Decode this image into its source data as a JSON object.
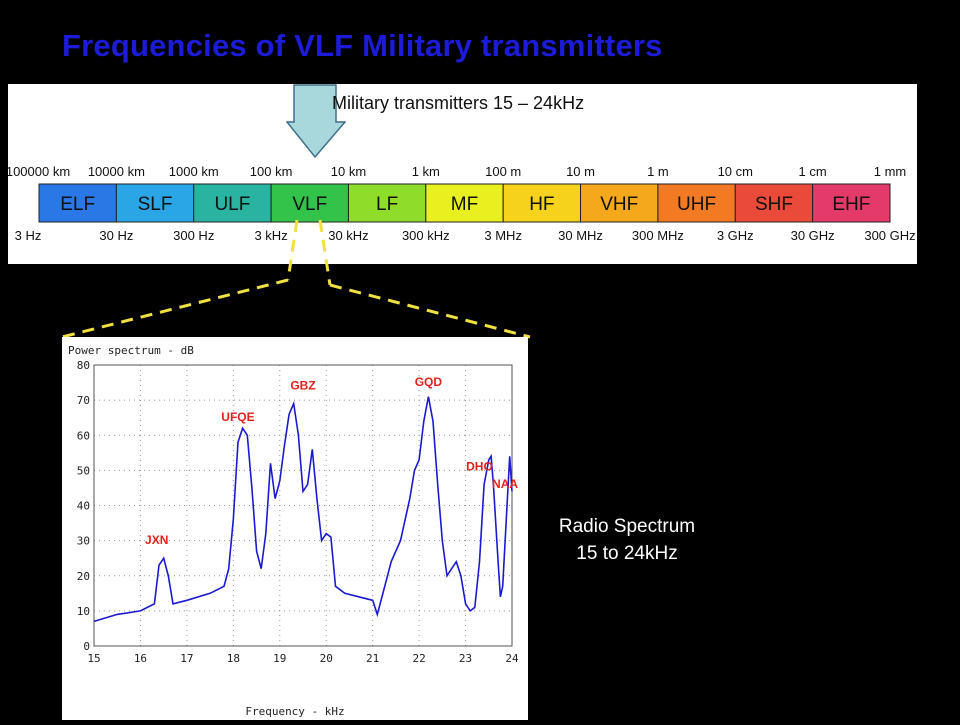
{
  "slide": {
    "title": "Frequencies of VLF Military transmitters",
    "military_label": "Military transmitters 15 – 24kHz",
    "radio_caption_line1": "Radio Spectrum",
    "radio_caption_line2": "15 to 24kHz"
  },
  "em_spectrum": {
    "wavelength_labels": [
      "100000 km",
      "10000 km",
      "1000 km",
      "100 km",
      "10 km",
      "1 km",
      "100 m",
      "10 m",
      "1 m",
      "10 cm",
      "1 cm",
      "1 mm"
    ],
    "frequency_labels": [
      "3 Hz",
      "30 Hz",
      "300 Hz",
      "3 kHz",
      "30 kHz",
      "300 kHz",
      "3 MHz",
      "30 MHz",
      "300 MHz",
      "3 GHz",
      "30 GHz",
      "300 GHz"
    ],
    "bands": [
      {
        "name": "ELF",
        "color": "#2a78e6"
      },
      {
        "name": "SLF",
        "color": "#2aa6e6"
      },
      {
        "name": "ULF",
        "color": "#28b4a0"
      },
      {
        "name": "VLF",
        "color": "#33c24a"
      },
      {
        "name": "LF",
        "color": "#8fdc2a"
      },
      {
        "name": "MF",
        "color": "#e8f020"
      },
      {
        "name": "HF",
        "color": "#f6d21c"
      },
      {
        "name": "VHF",
        "color": "#f6a81c"
      },
      {
        "name": "UHF",
        "color": "#f27a22"
      },
      {
        "name": "SHF",
        "color": "#ea4a3a"
      },
      {
        "name": "EHF",
        "color": "#e43a6a"
      }
    ]
  },
  "chart_data": {
    "type": "line",
    "title": "Power spectrum - dB",
    "xlabel": "Frequency - kHz",
    "ylabel": "",
    "xlim": [
      15,
      24
    ],
    "ylim": [
      0,
      80
    ],
    "xticks": [
      "15",
      "16",
      "17",
      "18",
      "19",
      "20",
      "21",
      "22",
      "23",
      "24"
    ],
    "yticks": [
      "0",
      "10",
      "20",
      "30",
      "40",
      "50",
      "60",
      "70",
      "80"
    ],
    "grid": true,
    "line_color": "#1a1ad0",
    "label_color": "#e8201a",
    "series": [
      {
        "x": [
          15.0,
          15.5,
          16.0,
          16.3,
          16.4,
          16.5,
          16.6,
          16.7,
          17.0,
          17.5,
          17.8,
          17.9,
          18.0,
          18.1,
          18.2,
          18.3,
          18.4,
          18.5,
          18.6,
          18.7,
          18.8,
          18.9,
          19.0,
          19.1,
          19.2,
          19.3,
          19.4,
          19.5,
          19.6,
          19.7,
          19.8,
          19.9,
          20.0,
          20.1,
          20.2,
          20.4,
          20.7,
          21.0,
          21.1,
          21.2,
          21.4,
          21.6,
          21.8,
          21.9,
          22.0,
          22.1,
          22.2,
          22.3,
          22.4,
          22.5,
          22.6,
          22.7,
          22.8,
          22.9,
          23.0,
          23.1,
          23.2,
          23.3,
          23.4,
          23.5,
          23.55,
          23.6,
          23.7,
          23.75,
          23.8,
          23.9,
          23.95,
          24.0
        ],
        "y": [
          7,
          9,
          10,
          12,
          23,
          25,
          20,
          12,
          13,
          15,
          17,
          22,
          36,
          58,
          62,
          60,
          45,
          27,
          22,
          32,
          52,
          42,
          47,
          57,
          66,
          69,
          60,
          44,
          46,
          56,
          42,
          30,
          32,
          31,
          17,
          15,
          14,
          13,
          9,
          14,
          24,
          30,
          42,
          50,
          53,
          64,
          71,
          64,
          46,
          30,
          20,
          22,
          24,
          20,
          12,
          10,
          11,
          24,
          46,
          53,
          54,
          46,
          24,
          14,
          17,
          42,
          54,
          44
        ]
      }
    ],
    "annotations": [
      {
        "label": "JXN",
        "x": 16.35,
        "y": 29
      },
      {
        "label": "UFQE",
        "x": 18.1,
        "y": 64
      },
      {
        "label": "GBZ",
        "x": 19.5,
        "y": 73
      },
      {
        "label": "GQD",
        "x": 22.2,
        "y": 74
      },
      {
        "label": "DHO",
        "x": 23.3,
        "y": 50
      },
      {
        "label": "NAA",
        "x": 23.85,
        "y": 45
      }
    ]
  }
}
